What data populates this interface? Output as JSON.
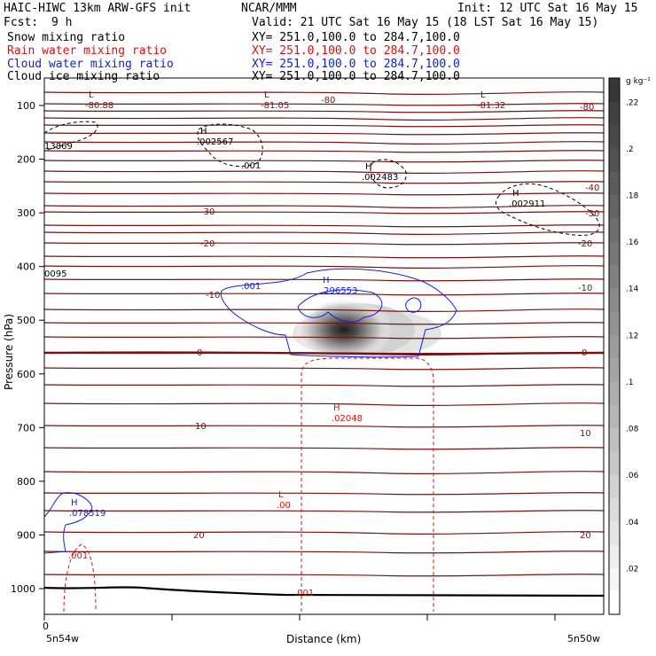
{
  "header": {
    "title_left": "HAIC-HIWC 13km ARW-GFS init",
    "title_center": "NCAR/MMM",
    "init": "Init: 12 UTC Sat 16 May 15",
    "fcst_label": "Fcst:",
    "fcst_value": "9 h",
    "valid": "Valid: 21 UTC Sat 16 May 15 (18 LST Sat 16 May 15)",
    "fields": [
      {
        "name": "Snow mixing ratio",
        "xy": "XY= 251.0,100.0 to 284.7,100.0",
        "color": "#000000"
      },
      {
        "name": "Rain water mixing ratio",
        "xy": "XY= 251.0,100.0 to 284.7,100.0",
        "color": "#e01010"
      },
      {
        "name": "Cloud water mixing ratio",
        "xy": "XY= 251.0,100.0 to 284.7,100.0",
        "color": "#1020e0"
      },
      {
        "name": "Cloud ice mixing ratio",
        "xy": "XY= 251.0,100.0 to 284.7,100.0",
        "color": "#000000"
      }
    ]
  },
  "chart_data": {
    "type": "heatmap",
    "xlabel": "Distance (km)",
    "ylabel": "Pressure (hPa)",
    "x_ticks": [
      {
        "value": 0,
        "label": "0"
      }
    ],
    "x_end_labels": {
      "left": "5n54w",
      "right": "5n50w"
    },
    "y_ticks": [
      100,
      200,
      300,
      400,
      500,
      600,
      700,
      800,
      900,
      1000
    ],
    "ylim": [
      1050,
      50
    ],
    "colorbar": {
      "unit": "g kg⁻¹",
      "ticks": [
        ".02",
        ".04",
        ".06",
        ".08",
        ".1",
        ".12",
        ".14",
        ".16",
        ".18",
        ".2",
        ".22"
      ],
      "levels": 23
    },
    "snow_max": {
      "label": "H",
      "value": ".296553"
    },
    "temperature_labels": [
      {
        "value": "-80.88",
        "marker": "L"
      },
      {
        "value": "-81.05",
        "marker": "L"
      },
      {
        "value": "-80",
        "marker": ""
      },
      {
        "value": "-81.32",
        "marker": "L"
      },
      {
        "value": "-80",
        "marker": ""
      },
      {
        "value": "-40",
        "marker": ""
      },
      {
        "value": "-30",
        "marker": ""
      },
      {
        "value": "-30",
        "marker": ""
      },
      {
        "value": "-20",
        "marker": ""
      },
      {
        "value": "-20",
        "marker": ""
      },
      {
        "value": "-10",
        "marker": ""
      },
      {
        "value": "-10",
        "marker": ""
      },
      {
        "value": "0",
        "marker": ""
      },
      {
        "value": "0",
        "marker": ""
      },
      {
        "value": "10",
        "marker": ""
      },
      {
        "value": "10",
        "marker": ""
      },
      {
        "value": "20",
        "marker": ""
      },
      {
        "value": "20",
        "marker": ""
      }
    ],
    "rain_labels": [
      {
        "value": ".02048",
        "marker": "H"
      },
      {
        "value": ".00",
        "marker": "L"
      },
      {
        "value": ".001",
        "marker": ""
      },
      {
        "value": ".001",
        "marker": ""
      }
    ],
    "cloud_water_labels": [
      {
        "value": ".001",
        "marker": ""
      },
      {
        "value": ".296553",
        "marker": "H"
      },
      {
        "value": ".078519",
        "marker": "H"
      }
    ],
    "ice_labels": [
      {
        "value": ".002567",
        "marker": "H"
      },
      {
        "value": ".001",
        "marker": ""
      },
      {
        "value": ".002483",
        "marker": "H"
      },
      {
        "value": ".002911",
        "marker": "H"
      },
      {
        "value": "13869",
        "marker": ""
      },
      {
        "value": "0095",
        "marker": ""
      }
    ]
  }
}
